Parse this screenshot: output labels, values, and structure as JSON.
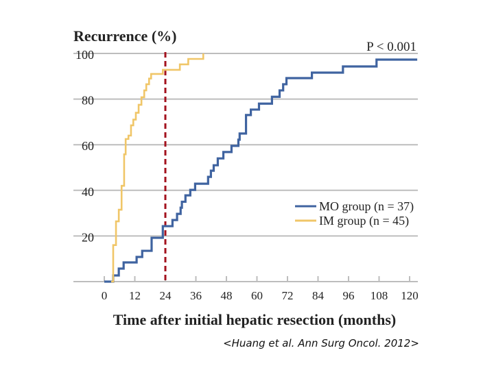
{
  "chart_data": {
    "type": "line",
    "step": true,
    "title": "Recurrence (%)",
    "annotation": "P < 0.001",
    "xlabel": "Time after initial hepatic resection (months)",
    "ylabel": "",
    "xlim": [
      0,
      120
    ],
    "ylim": [
      0,
      100
    ],
    "x_ticks": [
      0,
      12,
      24,
      36,
      48,
      60,
      72,
      84,
      96,
      108,
      120
    ],
    "y_ticks": [
      20,
      40,
      60,
      80,
      100
    ],
    "grid": "horizontal",
    "legend_position": "right",
    "reference_line": {
      "x": 24,
      "style": "dashed",
      "color": "#a3121e"
    },
    "series": [
      {
        "name": "MO group (n = 37)",
        "color": "#3f63a0",
        "x": [
          0,
          3.5,
          5.7,
          7.6,
          12.7,
          14.9,
          18.6,
          23,
          26.8,
          28.6,
          30,
          30.5,
          31.9,
          33.8,
          35.7,
          40.8,
          41.9,
          43,
          44.6,
          46.8,
          50,
          52.7,
          53.2,
          55.7,
          57.6,
          60.8,
          65.9,
          68.9,
          70.3,
          71.6,
          81.6,
          93.8,
          107,
          123
        ],
        "y": [
          0,
          2.7,
          5.7,
          8.4,
          10.8,
          13.5,
          19.2,
          24.3,
          27,
          29.7,
          32.4,
          35,
          37.8,
          40.2,
          42.9,
          45.9,
          48.6,
          51,
          54,
          56.8,
          59.5,
          62.2,
          64.9,
          73,
          75.4,
          78,
          81,
          83.8,
          86.5,
          89.2,
          91.6,
          94.3,
          97.3,
          97.3
        ]
      },
      {
        "name": "IM group (n = 45)",
        "color": "#f0c668",
        "x": [
          2.7,
          3.5,
          4.6,
          5.7,
          6.8,
          7.8,
          8.4,
          9.5,
          10.5,
          11.4,
          12.4,
          13.5,
          14.6,
          15.7,
          16.5,
          17.6,
          18.4,
          23,
          29.7,
          33,
          38.9
        ],
        "y": [
          0,
          16,
          26.4,
          31.5,
          42,
          55.8,
          62.5,
          64,
          68.5,
          71,
          74,
          77.5,
          80.8,
          83.8,
          86.5,
          89,
          91,
          92.8,
          95.2,
          97.6,
          100
        ]
      }
    ],
    "citation": "<Huang et al. Ann Surg Oncol. 2012>"
  }
}
